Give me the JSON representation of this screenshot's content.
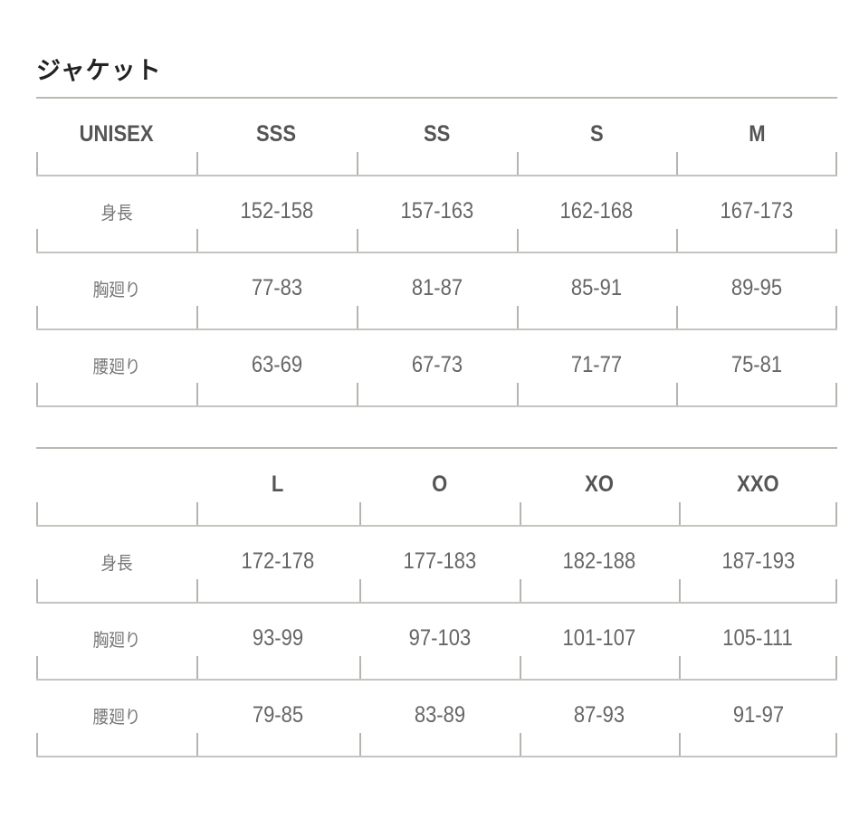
{
  "title": "ジャケット",
  "tables": [
    {
      "header": [
        "UNISEX",
        "SSS",
        "SS",
        "S",
        "M"
      ],
      "rows": [
        {
          "label": "身長",
          "values": [
            "152-158",
            "157-163",
            "162-168",
            "167-173"
          ]
        },
        {
          "label": "胸廻り",
          "values": [
            "77-83",
            "81-87",
            "85-91",
            "89-95"
          ]
        },
        {
          "label": "腰廻り",
          "values": [
            "63-69",
            "67-73",
            "71-77",
            "75-81"
          ]
        }
      ]
    },
    {
      "header": [
        "",
        "L",
        "O",
        "XO",
        "XXO"
      ],
      "rows": [
        {
          "label": "身長",
          "values": [
            "172-178",
            "177-183",
            "182-188",
            "187-193"
          ]
        },
        {
          "label": "胸廻り",
          "values": [
            "93-99",
            "97-103",
            "101-107",
            "105-111"
          ]
        },
        {
          "label": "腰廻り",
          "values": [
            "79-85",
            "83-89",
            "87-93",
            "91-97"
          ]
        }
      ]
    }
  ]
}
